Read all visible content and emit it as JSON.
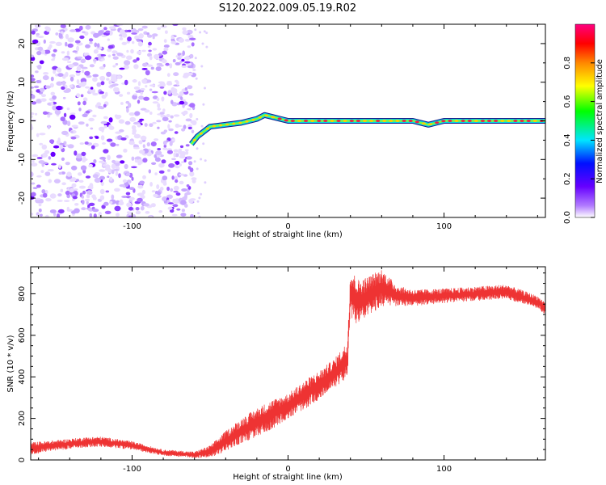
{
  "title": "S120.2022.009.05.19.R02",
  "chart_data": [
    {
      "type": "heatmap",
      "xlabel": "Height of straight line (km)",
      "ylabel": "Frequency (Hz)",
      "xlim": [
        -165,
        165
      ],
      "ylim": [
        -25,
        25
      ],
      "x_ticks": [
        -100,
        0,
        100
      ],
      "y_ticks": [
        -20,
        -10,
        0,
        10,
        20
      ],
      "noise_region_x": [
        -165,
        -60
      ],
      "ridge": {
        "x": [
          -62,
          -58,
          -50,
          -40,
          -30,
          -20,
          -15,
          -10,
          -5,
          0,
          10,
          30,
          60,
          80,
          90,
          95,
          100,
          120,
          140,
          165
        ],
        "freq": [
          -6,
          -4,
          -1.5,
          -1,
          -0.5,
          0.5,
          1.5,
          1,
          0.5,
          0,
          0,
          0,
          0,
          0,
          -1,
          -0.5,
          0,
          0,
          0,
          0
        ]
      },
      "colorbar": {
        "label": "Normalized spectral amplitude",
        "range": [
          0.0,
          1.0
        ],
        "ticks": [
          "0.0",
          "0.2",
          "0.4",
          "0.6",
          "0.8"
        ],
        "colors": [
          "#ffffff",
          "#7b00ff",
          "#0000ff",
          "#00e5ff",
          "#00ff00",
          "#ffff00",
          "#ff8000",
          "#ff0000",
          "#ff007f"
        ]
      }
    },
    {
      "type": "line",
      "xlabel": "Height of straight line (km)",
      "ylabel": "SNR (10 * v/v)",
      "xlim": [
        -165,
        165
      ],
      "ylim": [
        0,
        930
      ],
      "x_ticks": [
        -100,
        0,
        100
      ],
      "y_ticks": [
        0,
        200,
        400,
        600,
        800
      ],
      "color": "#ee3333",
      "envelope": {
        "x": [
          -165,
          -150,
          -130,
          -120,
          -100,
          -80,
          -60,
          -50,
          -40,
          -30,
          -20,
          -10,
          0,
          10,
          20,
          30,
          38,
          40,
          45,
          50,
          60,
          70,
          80,
          100,
          120,
          140,
          160,
          165
        ],
        "mean": [
          55,
          70,
          85,
          88,
          70,
          35,
          25,
          40,
          90,
          140,
          180,
          220,
          260,
          310,
          360,
          420,
          480,
          800,
          760,
          780,
          830,
          790,
          780,
          790,
          800,
          810,
          760,
          730
        ],
        "amp": [
          30,
          25,
          25,
          25,
          20,
          15,
          15,
          30,
          50,
          60,
          70,
          70,
          60,
          70,
          70,
          70,
          90,
          120,
          110,
          100,
          90,
          50,
          40,
          35,
          35,
          35,
          30,
          30
        ]
      }
    }
  ]
}
